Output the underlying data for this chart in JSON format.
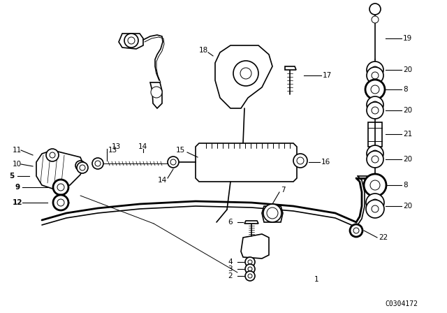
{
  "background_color": "#ffffff",
  "fig_width": 6.4,
  "fig_height": 4.48,
  "dpi": 100,
  "watermark": "C0304172",
  "watermark_fontsize": 7
}
